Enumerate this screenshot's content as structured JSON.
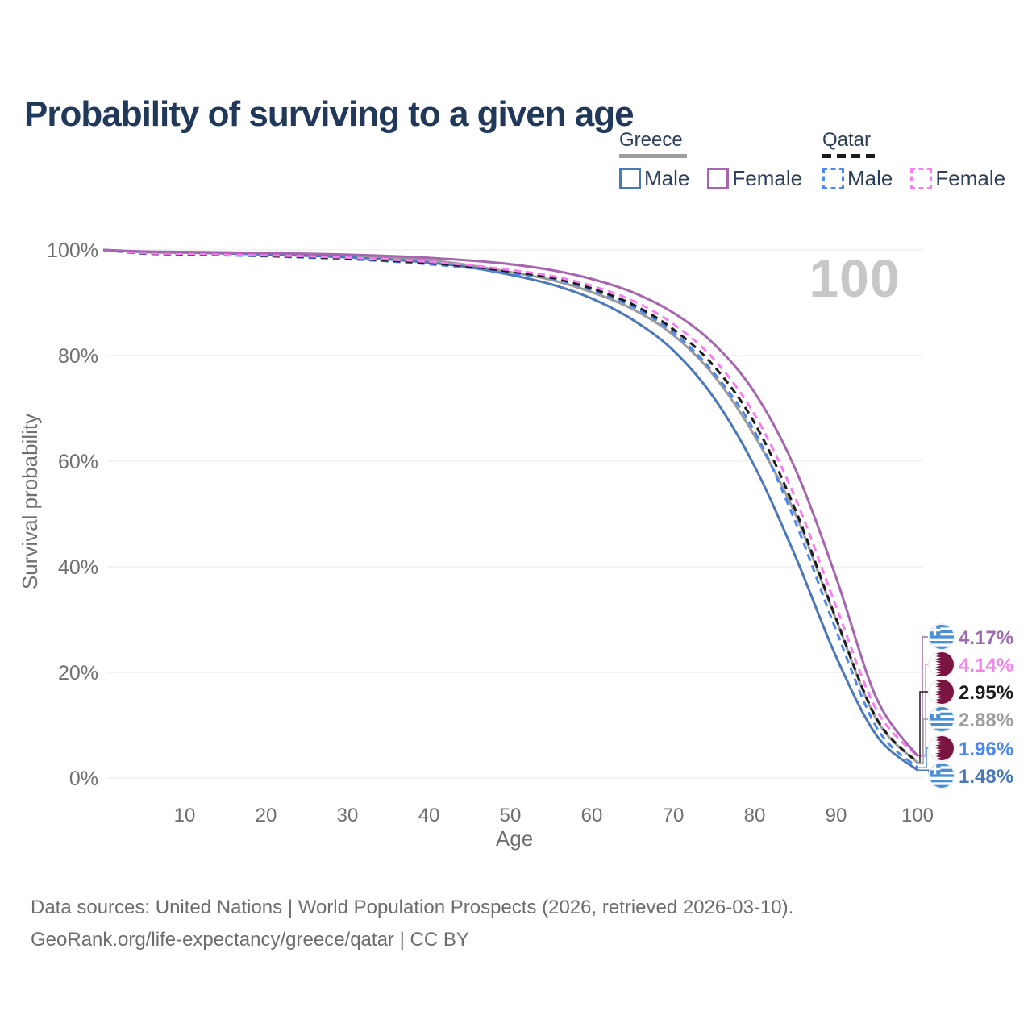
{
  "title": {
    "text": "Probability of surviving to a given age"
  },
  "legend": {
    "groups": [
      {
        "label": "Greece",
        "line_style": "solid",
        "underline_color": "#9e9e9e",
        "items": [
          {
            "label": "Male",
            "color": "#4a78b8",
            "dash": false
          },
          {
            "label": "Female",
            "color": "#a765af",
            "dash": false
          }
        ]
      },
      {
        "label": "Qatar",
        "line_style": "dashed",
        "underline_color": "#1c1c1c",
        "items": [
          {
            "label": "Male",
            "color": "#4d87f0",
            "dash": true
          },
          {
            "label": "Female",
            "color": "#f97df1",
            "dash": true
          }
        ]
      }
    ]
  },
  "chart_data": {
    "type": "line",
    "title": "Probability of surviving to a given age",
    "xlabel": "Age",
    "ylabel": "Survival probability",
    "xlim": [
      0,
      100
    ],
    "ylim": [
      0,
      100
    ],
    "grid": "horizontal-only",
    "gridline_color": "#e7e7e7",
    "tick_color": "#6f6f6f",
    "hover_age_annotation": "100",
    "watermark_color": "#c7c7c7",
    "x_ticks": [
      {
        "v": 10,
        "label": "10"
      },
      {
        "v": 20,
        "label": "20"
      },
      {
        "v": 30,
        "label": "30"
      },
      {
        "v": 40,
        "label": "40"
      },
      {
        "v": 50,
        "label": "50"
      },
      {
        "v": 60,
        "label": "60"
      },
      {
        "v": 70,
        "label": "70"
      },
      {
        "v": 80,
        "label": "80"
      },
      {
        "v": 90,
        "label": "90"
      },
      {
        "v": 100,
        "label": "100"
      }
    ],
    "y_ticks": [
      {
        "v": 0,
        "label": "0%"
      },
      {
        "v": 20,
        "label": "20%"
      },
      {
        "v": 40,
        "label": "40%"
      },
      {
        "v": 60,
        "label": "60%"
      },
      {
        "v": 80,
        "label": "80%"
      },
      {
        "v": 100,
        "label": "100%"
      }
    ],
    "x": [
      0,
      5,
      10,
      15,
      20,
      25,
      30,
      35,
      40,
      45,
      50,
      55,
      60,
      65,
      70,
      75,
      80,
      85,
      90,
      95,
      100
    ],
    "series": [
      {
        "id": "greece-overall",
        "name": "Greece — Overall",
        "color": "#9b9b9b",
        "dash": false,
        "flag": "greece",
        "end_label": "2.88%",
        "label_color": "#9e9e9e",
        "values": [
          100,
          99.65,
          99.56,
          99.44,
          99.28,
          99.08,
          98.85,
          98.5,
          98.05,
          97.1,
          95.8,
          94.35,
          92.0,
          88.8,
          83.9,
          76.2,
          64.8,
          50.0,
          30.0,
          11.0,
          2.88
        ]
      },
      {
        "id": "greece-male",
        "name": "Greece — Male",
        "color": "#4a78b8",
        "dash": false,
        "flag": "greece",
        "end_label": "1.48%",
        "label_color": "#4a79b8",
        "values": [
          100,
          99.6,
          99.5,
          99.35,
          99.15,
          98.9,
          98.6,
          98.2,
          97.6,
          96.7,
          95.3,
          93.5,
          90.8,
          86.8,
          81.0,
          72.0,
          59.0,
          42.0,
          23.0,
          8.0,
          1.48
        ]
      },
      {
        "id": "qatar-male",
        "name": "Qatar — Male",
        "color": "#4d87f0",
        "dash": true,
        "flag": "qatar",
        "end_label": "1.96%",
        "label_color": "#4d87f0",
        "values": [
          100,
          99.3,
          99.15,
          99.0,
          98.8,
          98.55,
          98.25,
          97.85,
          97.3,
          96.6,
          95.6,
          94.6,
          92.4,
          89.3,
          84.4,
          76.7,
          65.6,
          48.5,
          28.0,
          9.5,
          1.96
        ]
      },
      {
        "id": "qatar-overall",
        "name": "Qatar — Overall",
        "color": "#1c1c1c",
        "dash": true,
        "flag": "qatar",
        "end_label": "2.95%",
        "label_color": "#1c1c1c",
        "values": [
          100,
          99.36,
          99.22,
          99.08,
          98.9,
          98.67,
          98.4,
          98.0,
          97.5,
          96.85,
          95.9,
          94.8,
          92.7,
          89.7,
          85.0,
          78.0,
          67.2,
          50.8,
          30.2,
          11.2,
          2.95
        ]
      },
      {
        "id": "qatar-female",
        "name": "Qatar — Female",
        "color": "#f97df1",
        "dash": true,
        "flag": "qatar",
        "end_label": "4.14%",
        "label_color": "#f584ec",
        "values": [
          100,
          99.42,
          99.3,
          99.17,
          99.0,
          98.8,
          98.55,
          98.2,
          97.75,
          97.1,
          96.2,
          95.1,
          93.2,
          90.4,
          86.0,
          79.3,
          68.8,
          53.0,
          32.5,
          12.8,
          4.14
        ]
      },
      {
        "id": "greece-female",
        "name": "Greece — Female",
        "color": "#a765af",
        "dash": false,
        "flag": "greece",
        "end_label": "4.17%",
        "label_color": "#9d6bb0",
        "values": [
          100,
          99.7,
          99.62,
          99.52,
          99.42,
          99.28,
          99.1,
          98.85,
          98.5,
          98.0,
          97.3,
          96.2,
          94.5,
          92.0,
          88.1,
          82.2,
          73.0,
          58.5,
          38.0,
          15.0,
          4.17
        ]
      }
    ],
    "flag_colors": {
      "greece_blue": "#4a8fd3",
      "qatar_maroon": "#7a1440"
    }
  },
  "footer": {
    "line1": "Data sources: United Nations | World Population Prospects (2026, retrieved 2026-03-10).",
    "line2": "GeoRank.org/life-expectancy/greece/qatar | CC BY"
  }
}
